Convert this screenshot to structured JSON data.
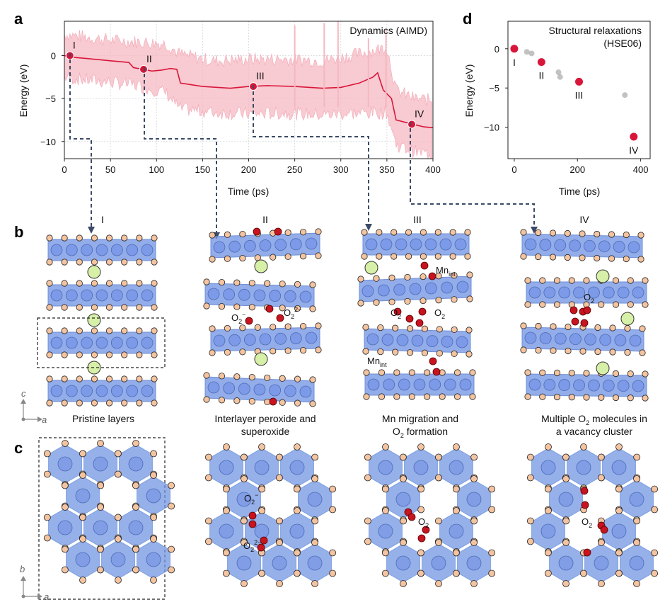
{
  "panel_labels": {
    "a": "a",
    "b": "b",
    "c": "c",
    "d": "d"
  },
  "chart_data": [
    {
      "type": "line",
      "panel": "a",
      "annotation": "Dynamics (AIMD)",
      "xlabel": "Time (ps)",
      "ylabel": "Energy (eV)",
      "xlim": [
        0,
        400
      ],
      "ylim": [
        -12,
        4
      ],
      "xticks": [
        0,
        50,
        100,
        150,
        200,
        250,
        300,
        350,
        400
      ],
      "yticks": [
        0,
        -5,
        -10
      ],
      "grid": true,
      "smoothed_series": {
        "x": [
          0,
          10,
          30,
          50,
          70,
          75,
          86,
          95,
          105,
          115,
          122,
          126,
          150,
          180,
          200,
          220,
          250,
          280,
          300,
          320,
          335,
          340,
          346,
          355,
          360,
          375,
          390,
          400
        ],
        "y": [
          0,
          -0.2,
          -0.4,
          -0.6,
          -0.8,
          -1.4,
          -1.6,
          -1.8,
          -1.7,
          -1.5,
          -1.6,
          -3.2,
          -3.6,
          -3.8,
          -3.6,
          -3.5,
          -3.6,
          -3.8,
          -3.7,
          -3.2,
          -2.5,
          -2.0,
          -4.0,
          -5.0,
          -7.5,
          -7.9,
          -8.3,
          -8.4
        ]
      },
      "raw_envelope": {
        "x": [
          0,
          20,
          50,
          80,
          110,
          125,
          160,
          200,
          240,
          280,
          320,
          350,
          360,
          380,
          400
        ],
        "upper": [
          2.5,
          2.2,
          1.8,
          1.6,
          1.4,
          0.2,
          -0.6,
          -0.4,
          -0.4,
          -0.6,
          0.2,
          1.0,
          -4.0,
          -5.0,
          -5.2
        ],
        "lower": [
          -2.5,
          -2.8,
          -3.1,
          -3.5,
          -4.3,
          -6.2,
          -6.6,
          -6.8,
          -6.7,
          -6.9,
          -6.7,
          -6.6,
          -10.4,
          -11.2,
          -11.5
        ]
      },
      "marked_points": [
        {
          "label": "I",
          "x": 6,
          "y": 0.0
        },
        {
          "label": "II",
          "x": 86,
          "y": -1.6
        },
        {
          "label": "III",
          "x": 205,
          "y": -3.6
        },
        {
          "label": "IV",
          "x": 377,
          "y": -8.0
        }
      ]
    },
    {
      "type": "scatter",
      "panel": "d",
      "annotation_line1": "Structural relaxations",
      "annotation_line2": "(HSE06)",
      "xlabel": "Time (ps)",
      "ylabel": "Energy (eV)",
      "xlim": [
        -20,
        430
      ],
      "ylim": [
        -14,
        3.5
      ],
      "xticks": [
        0,
        200,
        400
      ],
      "yticks": [
        0,
        -5,
        -10
      ],
      "highlighted": [
        {
          "label": "I",
          "x": 0,
          "y": 0.0
        },
        {
          "label": "II",
          "x": 86,
          "y": -1.7
        },
        {
          "label": "III",
          "x": 205,
          "y": -4.2
        },
        {
          "label": "IV",
          "x": 378,
          "y": -11.2
        }
      ],
      "intermediate": [
        {
          "x": 40,
          "y": -0.4
        },
        {
          "x": 55,
          "y": -0.6
        },
        {
          "x": 140,
          "y": -3.0
        },
        {
          "x": 145,
          "y": -3.6
        },
        {
          "x": 350,
          "y": -5.9
        }
      ]
    }
  ],
  "panel_b": {
    "stage_titles": [
      "I",
      "II",
      "III",
      "IV"
    ],
    "captions": [
      [
        "Pristine layers"
      ],
      [
        "Interlayer peroxide and",
        "superoxide"
      ],
      [
        "Mn migration and",
        "O2 formation"
      ],
      [
        "Multiple O2 molecules in",
        "a vacancy cluster"
      ]
    ],
    "labels": {
      "o2_minus": "O2−",
      "o2_2minus": "O22−",
      "o2": "O2",
      "mn_int": "Mnint"
    },
    "axis_c": "c",
    "axis_a": "a"
  },
  "panel_c": {
    "axis_b": "b",
    "axis_a": "a"
  }
}
